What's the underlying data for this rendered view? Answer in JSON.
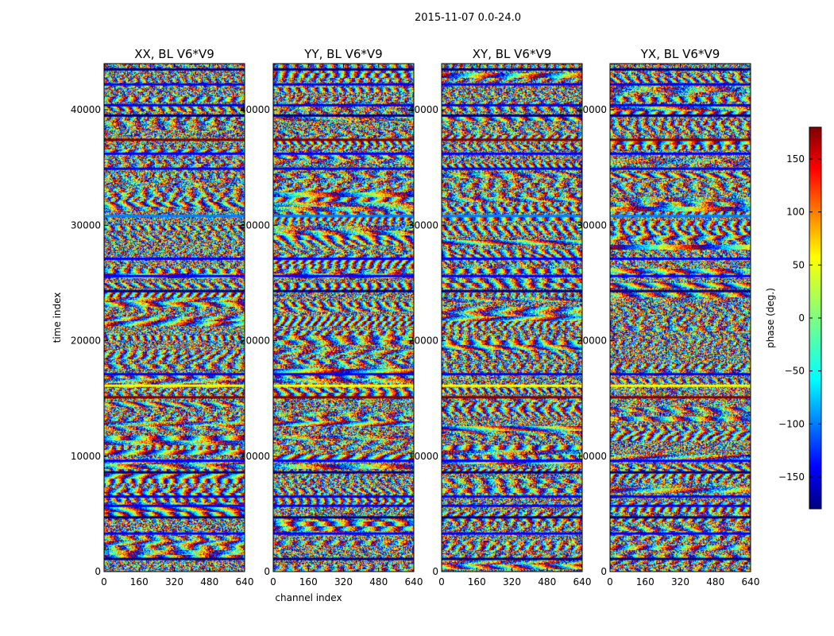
{
  "suptitle": "2015-11-07 0.0-24.0",
  "chart_data": [
    {
      "type": "heatmap",
      "title": "XX, BL V6*V9",
      "xlabel": "channel index",
      "ylabel": "time index",
      "xlim": [
        0,
        640
      ],
      "ylim": [
        0,
        44000
      ],
      "xticks": [
        0,
        160,
        320,
        480,
        640
      ],
      "yticks": [
        0,
        10000,
        20000,
        30000,
        40000
      ],
      "show_xlabel": false,
      "show_ylabel": true
    },
    {
      "type": "heatmap",
      "title": "YY, BL V6*V9",
      "xlabel": "channel index",
      "ylabel": "",
      "xlim": [
        0,
        640
      ],
      "ylim": [
        0,
        44000
      ],
      "xticks": [
        0,
        160,
        320,
        480,
        640
      ],
      "yticks": [
        0,
        10000,
        20000,
        30000,
        40000
      ],
      "show_xlabel": true,
      "show_ylabel": false
    },
    {
      "type": "heatmap",
      "title": "XY, BL V6*V9",
      "xlabel": "",
      "ylabel": "",
      "xlim": [
        0,
        640
      ],
      "ylim": [
        0,
        44000
      ],
      "xticks": [
        0,
        160,
        320,
        480,
        640
      ],
      "yticks": [
        0,
        10000,
        20000,
        30000,
        40000
      ],
      "show_xlabel": false,
      "show_ylabel": false
    },
    {
      "type": "heatmap",
      "title": "YX, BL V6*V9",
      "xlabel": "",
      "ylabel": "",
      "xlim": [
        0,
        640
      ],
      "ylim": [
        0,
        44000
      ],
      "xticks": [
        0,
        160,
        320,
        480,
        640
      ],
      "yticks": [
        0,
        10000,
        20000,
        30000,
        40000
      ],
      "show_xlabel": false,
      "show_ylabel": false
    }
  ],
  "colorbar": {
    "label": "phase (deg.)",
    "min": -180,
    "max": 180,
    "ticks": [
      -150,
      -100,
      -50,
      0,
      50,
      100,
      150
    ],
    "colormap": "jet",
    "stops": [
      "#00007f",
      "#0000ff",
      "#007fff",
      "#00ffff",
      "#7fff7f",
      "#ffff00",
      "#ff7f00",
      "#ff0000",
      "#7f0000"
    ]
  },
  "band_rows": [
    {
      "t": 43600,
      "c": 0
    },
    {
      "t": 42300,
      "c": 1
    },
    {
      "t": 40500,
      "c": 1
    },
    {
      "t": 39600,
      "c": 0
    },
    {
      "t": 37500,
      "c": 8
    },
    {
      "t": 36300,
      "c": 1
    },
    {
      "t": 35000,
      "c": 1
    },
    {
      "t": 30900,
      "c": 2
    },
    {
      "t": 27200,
      "c": 1
    },
    {
      "t": 25700,
      "c": 1
    },
    {
      "t": 24400,
      "c": 0
    },
    {
      "t": 17200,
      "c": 1
    },
    {
      "t": 16200,
      "c": 5
    },
    {
      "t": 15200,
      "c": 8
    },
    {
      "t": 9700,
      "c": 1
    },
    {
      "t": 8700,
      "c": 0
    },
    {
      "t": 6600,
      "c": 1
    },
    {
      "t": 5800,
      "c": 1
    },
    {
      "t": 4800,
      "c": 0
    },
    {
      "t": 3400,
      "c": 1
    },
    {
      "t": 1200,
      "c": 0
    }
  ]
}
